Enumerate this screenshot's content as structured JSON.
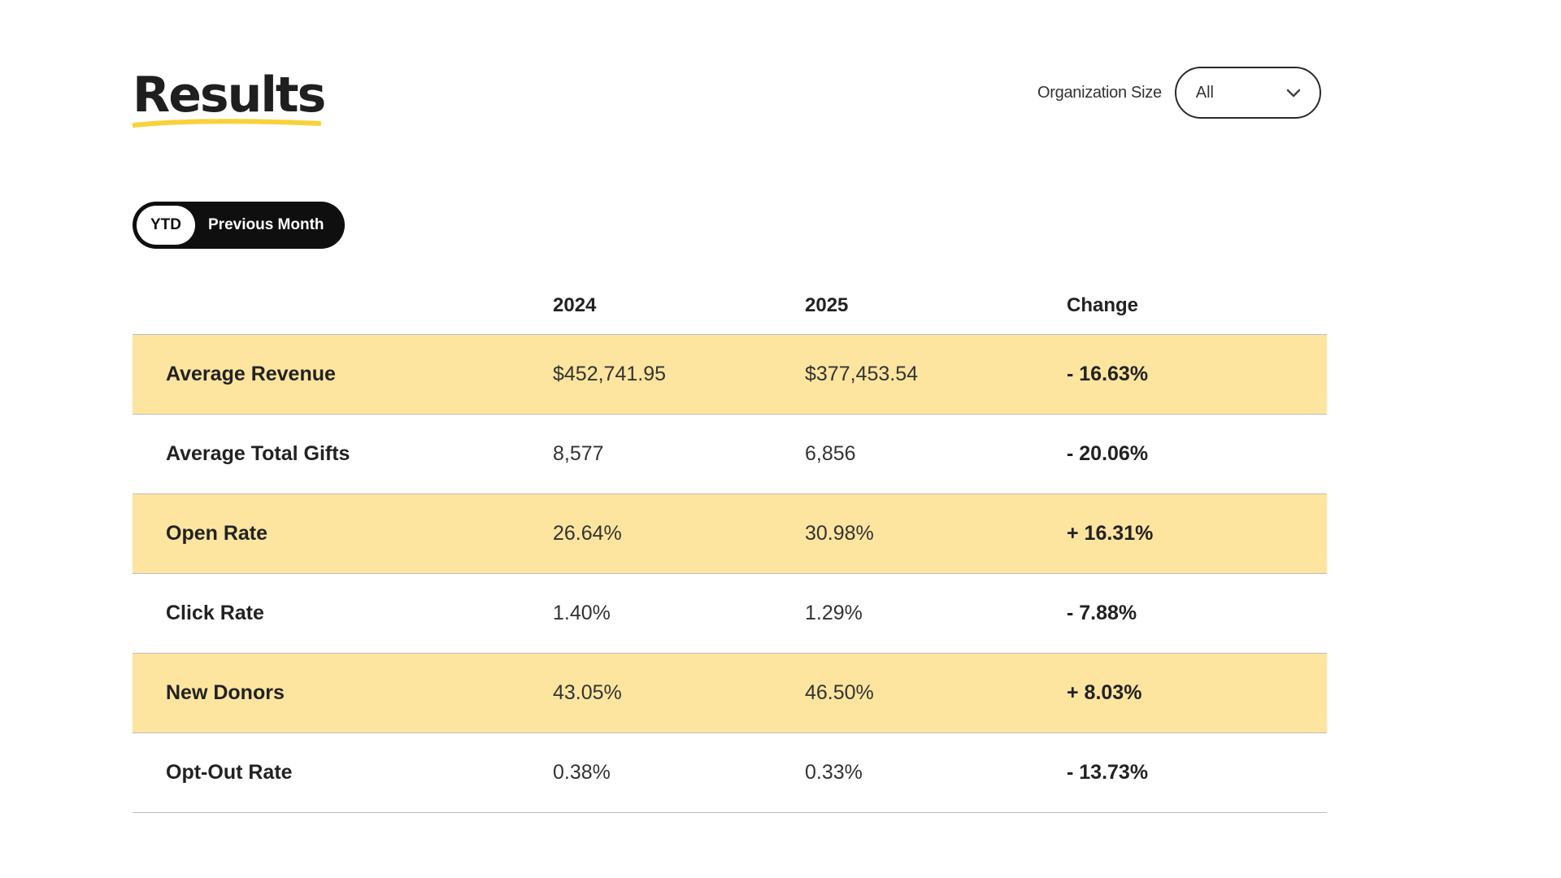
{
  "header": {
    "title": "Results",
    "accent_color": "#f7d23a"
  },
  "filter": {
    "label": "Organization Size",
    "selected": "All"
  },
  "period_toggle": {
    "options": [
      "YTD",
      "Previous Month"
    ],
    "active": "YTD"
  },
  "table": {
    "columns": [
      "",
      "2024",
      "2025",
      "Change"
    ],
    "highlight_color": "#fde59f",
    "rows": [
      {
        "metric": "Average Revenue",
        "y2024": "$452,741.95",
        "y2025": "$377,453.54",
        "change": "- 16.63%"
      },
      {
        "metric": "Average Total Gifts",
        "y2024": "8,577",
        "y2025": "6,856",
        "change": "- 20.06%"
      },
      {
        "metric": "Open Rate",
        "y2024": "26.64%",
        "y2025": "30.98%",
        "change": "+ 16.31%"
      },
      {
        "metric": "Click Rate",
        "y2024": "1.40%",
        "y2025": "1.29%",
        "change": "- 7.88%"
      },
      {
        "metric": "New Donors",
        "y2024": "43.05%",
        "y2025": "46.50%",
        "change": "+ 8.03%"
      },
      {
        "metric": "Opt-Out Rate",
        "y2024": "0.38%",
        "y2025": "0.33%",
        "change": "- 13.73%"
      }
    ]
  }
}
